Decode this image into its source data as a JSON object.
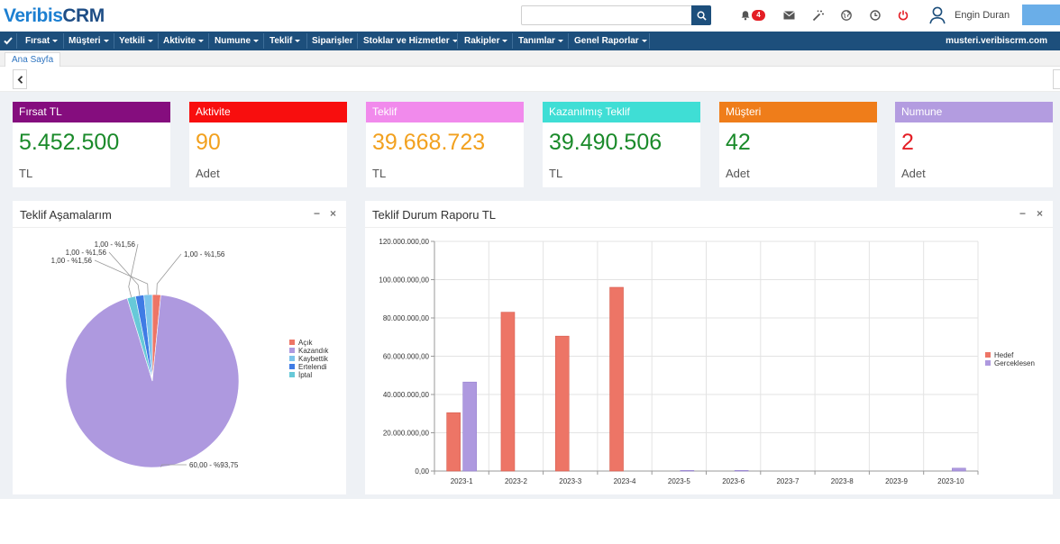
{
  "header": {
    "logo_part1": "Veribis",
    "logo_part2": "CRM",
    "search_placeholder": "",
    "notification_count": "4",
    "user_name": "Engin Duran"
  },
  "nav": {
    "items": [
      {
        "label": "Fırsat",
        "dropdown": true
      },
      {
        "label": "Müşteri",
        "dropdown": true
      },
      {
        "label": "Yetkili",
        "dropdown": true
      },
      {
        "label": "Aktivite",
        "dropdown": true
      },
      {
        "label": "Numune",
        "dropdown": true
      },
      {
        "label": "Teklif",
        "dropdown": true
      },
      {
        "label": "Siparişler",
        "dropdown": false
      },
      {
        "label": "Stoklar ve Hizmetler",
        "dropdown": true
      },
      {
        "label": "Rakipler",
        "dropdown": true
      },
      {
        "label": "Tanımlar",
        "dropdown": true
      },
      {
        "label": "Genel Raporlar",
        "dropdown": true
      }
    ],
    "url": "musteri.veribiscrm.com"
  },
  "tabs": {
    "active": "Ana Sayfa"
  },
  "cards": [
    {
      "title": "Fırsat TL",
      "value": "5.452.500",
      "unit": "TL",
      "head_color": "#850d7e",
      "value_color": "#1a8a2a"
    },
    {
      "title": "Aktivite",
      "value": "90",
      "unit": "Adet",
      "head_color": "#f80e0e",
      "value_color": "#f2a11f"
    },
    {
      "title": "Teklif",
      "value": "39.668.723",
      "unit": "TL",
      "head_color": "#f18aec",
      "value_color": "#f2a11f"
    },
    {
      "title": "Kazanılmış Teklif",
      "value": "39.490.506",
      "unit": "TL",
      "head_color": "#3fded5",
      "value_color": "#1a8a2a"
    },
    {
      "title": "Müşteri",
      "value": "42",
      "unit": "Adet",
      "head_color": "#ef7d1a",
      "value_color": "#1a8a2a"
    },
    {
      "title": "Numune",
      "value": "2",
      "unit": "Adet",
      "head_color": "#b39ce0",
      "value_color": "#e41e25"
    }
  ],
  "panels": {
    "left_title": "Teklif Aşamalarım",
    "right_title": "Teklif Durum Raporu TL",
    "minimize_glyph": "−",
    "close_glyph": "×"
  },
  "chart_data": [
    {
      "type": "pie",
      "title": "Teklif Aşamalarım",
      "labels": [
        "Açık",
        "Kazandık",
        "Kaybettik",
        "Ertelendi",
        "İptal"
      ],
      "values": [
        1,
        60,
        1,
        1,
        1
      ],
      "slice_labels": [
        "1,00 - %1,56",
        "60,00 - %93,75",
        "1,00 - %1,56",
        "1,00 - %1,56",
        "1,00 - %1,56"
      ],
      "colors": [
        "#ed7566",
        "#ae99df",
        "#7cc4ea",
        "#3f7be5",
        "#67c9d8"
      ],
      "legend": "right"
    },
    {
      "type": "bar",
      "title": "Teklif Durum Raporu TL",
      "categories": [
        "2023-1",
        "2023-2",
        "2023-3",
        "2023-4",
        "2023-5",
        "2023-6",
        "2023-7",
        "2023-8",
        "2023-9",
        "2023-10"
      ],
      "series": [
        {
          "name": "Hedef",
          "color": "#ed7566",
          "values": [
            30500000,
            83000000,
            70500000,
            96000000,
            0,
            0,
            0,
            0,
            0,
            0
          ]
        },
        {
          "name": "Gerceklesen",
          "color": "#ae99df",
          "values": [
            46500000,
            0,
            0,
            0,
            300000,
            300000,
            0,
            0,
            0,
            1500000
          ]
        }
      ],
      "ylim": [
        0,
        120000000
      ],
      "yticks": [
        "0,00",
        "20.000.000,00",
        "40.000.000,00",
        "60.000.000,00",
        "80.000.000,00",
        "100.000.000,00",
        "120.000.000,00"
      ],
      "grid": true,
      "legend": "right"
    }
  ]
}
